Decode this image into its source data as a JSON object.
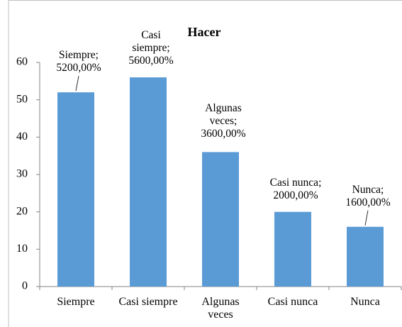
{
  "chart_data": {
    "type": "bar",
    "title": "Hacer",
    "categories": [
      "Siempre",
      "Casi siempre",
      "Algunas veces",
      "Casi nunca",
      "Nunca"
    ],
    "values": [
      52,
      56,
      36,
      20,
      16
    ],
    "value_labels": [
      "Siempre; 5200,00%",
      "Casi siempre; 5600,00%",
      "Algunas veces; 3600,00%",
      "Casi nunca; 2000,00%",
      "Nunca; 1600,00%"
    ],
    "color": "#5b9bd5",
    "ylim": [
      0,
      60
    ],
    "yticks": [
      0,
      10,
      20,
      30,
      40,
      50,
      60
    ],
    "grid": false
  }
}
